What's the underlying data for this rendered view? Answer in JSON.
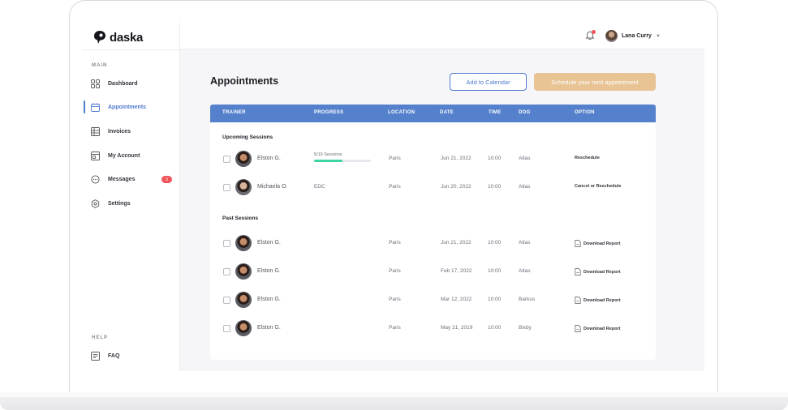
{
  "brand": {
    "name": "daska"
  },
  "sidebar": {
    "main_label": "MAIN",
    "help_label": "HELP",
    "items": [
      {
        "label": "Dashboard",
        "icon": "dashboard-icon"
      },
      {
        "label": "Appointments",
        "icon": "calendar-icon",
        "active": true
      },
      {
        "label": "Invoices",
        "icon": "invoice-icon"
      },
      {
        "label": "My Account",
        "icon": "account-icon"
      },
      {
        "label": "Messages",
        "icon": "message-icon",
        "badge": "3"
      },
      {
        "label": "Settings",
        "icon": "gear-icon"
      }
    ],
    "help_items": [
      {
        "label": "FAQ",
        "icon": "faq-icon"
      }
    ]
  },
  "header": {
    "user_name": "Lana Curry"
  },
  "main": {
    "title": "Appointments",
    "add_calendar": "Add to Calendar",
    "schedule": "Schedule your next appointment",
    "columns": [
      "TRAINER",
      "PROGRESS",
      "LOCATION",
      "DATE",
      "TIME",
      "DOG",
      "OPTION"
    ],
    "upcoming_title": "Upcoming Sessions",
    "past_title": "Past Sessions",
    "upcoming": [
      {
        "trainer": "Elston G.",
        "progress_label": "5/10 Sessions",
        "progress": 0.5,
        "location": "Paris",
        "date": "Jun 21, 2022",
        "time": "10:00",
        "dog": "Atlas",
        "option": "Reschedule"
      },
      {
        "trainer": "Michaela O.",
        "progress_label": "EDC",
        "location": "Paris",
        "date": "Jun 20, 2022",
        "time": "10:00",
        "dog": "Atlas",
        "option": "Cancel or Reschedule"
      }
    ],
    "past": [
      {
        "trainer": "Elston G.",
        "location": "Paris",
        "date": "Jun 21, 2022",
        "time": "10:00",
        "dog": "Atlas",
        "option": "Download Report"
      },
      {
        "trainer": "Elston G.",
        "location": "Paris",
        "date": "Feb 17, 2022",
        "time": "10:00",
        "dog": "Atlas",
        "option": "Download Report"
      },
      {
        "trainer": "Elston G.",
        "location": "Paris",
        "date": "Mar 12, 2022",
        "time": "10:00",
        "dog": "Barkus",
        "option": "Download Report"
      },
      {
        "trainer": "Elston G.",
        "location": "Paris",
        "date": "May 21, 2019",
        "time": "10:00",
        "dog": "Bixby",
        "option": "Download Report"
      }
    ]
  },
  "colors": {
    "accent": "#4f7bd1",
    "header": "#5480cc",
    "cta": "#e8c394",
    "progress": "#3ed6a0",
    "badge": "#f0545a"
  }
}
